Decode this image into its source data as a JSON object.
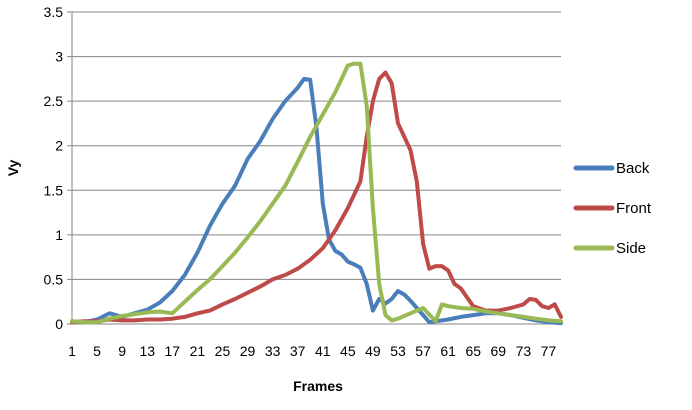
{
  "chart_data": {
    "type": "line",
    "title": "",
    "xlabel": "Frames",
    "ylabel": "Vy",
    "ylim": [
      0,
      3.5
    ],
    "yticks": [
      0,
      0.5,
      1,
      1.5,
      2,
      2.5,
      3,
      3.5
    ],
    "ytick_labels": [
      "0",
      "0.5",
      "1",
      "1.5",
      "2",
      "2.5",
      "3",
      "3.5"
    ],
    "xticks": [
      1,
      5,
      9,
      13,
      17,
      21,
      25,
      29,
      33,
      37,
      41,
      45,
      49,
      53,
      57,
      61,
      65,
      69,
      73,
      77
    ],
    "xtick_labels": [
      "1",
      "5",
      "9",
      "13",
      "17",
      "21",
      "25",
      "29",
      "33",
      "37",
      "41",
      "45",
      "49",
      "53",
      "57",
      "61",
      "65",
      "69",
      "73",
      "77"
    ],
    "xlim": [
      1,
      79
    ],
    "grid": "horizontal",
    "legend_position": "right",
    "series": [
      {
        "name": "Back",
        "color": "#4a7ebb",
        "points": [
          [
            1,
            0.03
          ],
          [
            3,
            0.02
          ],
          [
            5,
            0.05
          ],
          [
            7,
            0.12
          ],
          [
            9,
            0.08
          ],
          [
            11,
            0.12
          ],
          [
            13,
            0.16
          ],
          [
            15,
            0.24
          ],
          [
            17,
            0.37
          ],
          [
            19,
            0.55
          ],
          [
            21,
            0.8
          ],
          [
            23,
            1.1
          ],
          [
            25,
            1.35
          ],
          [
            27,
            1.55
          ],
          [
            29,
            1.85
          ],
          [
            31,
            2.05
          ],
          [
            33,
            2.3
          ],
          [
            35,
            2.5
          ],
          [
            37,
            2.65
          ],
          [
            38,
            2.75
          ],
          [
            39,
            2.74
          ],
          [
            40,
            2.2
          ],
          [
            41,
            1.35
          ],
          [
            42,
            0.95
          ],
          [
            43,
            0.82
          ],
          [
            44,
            0.78
          ],
          [
            45,
            0.7
          ],
          [
            46,
            0.67
          ],
          [
            47,
            0.63
          ],
          [
            48,
            0.45
          ],
          [
            49,
            0.15
          ],
          [
            50,
            0.28
          ],
          [
            51,
            0.23
          ],
          [
            52,
            0.28
          ],
          [
            53,
            0.37
          ],
          [
            54,
            0.33
          ],
          [
            55,
            0.26
          ],
          [
            56,
            0.18
          ],
          [
            57,
            0.1
          ],
          [
            58,
            0.02
          ],
          [
            59,
            0.03
          ],
          [
            61,
            0.05
          ],
          [
            63,
            0.08
          ],
          [
            65,
            0.1
          ],
          [
            67,
            0.12
          ],
          [
            69,
            0.12
          ],
          [
            71,
            0.1
          ],
          [
            73,
            0.07
          ],
          [
            75,
            0.04
          ],
          [
            77,
            0.02
          ],
          [
            79,
            0.01
          ]
        ]
      },
      {
        "name": "Front",
        "color": "#be4b48",
        "points": [
          [
            1,
            0.02
          ],
          [
            3,
            0.03
          ],
          [
            5,
            0.03
          ],
          [
            7,
            0.05
          ],
          [
            9,
            0.04
          ],
          [
            11,
            0.04
          ],
          [
            13,
            0.05
          ],
          [
            15,
            0.05
          ],
          [
            17,
            0.06
          ],
          [
            19,
            0.08
          ],
          [
            21,
            0.12
          ],
          [
            23,
            0.15
          ],
          [
            25,
            0.22
          ],
          [
            27,
            0.28
          ],
          [
            29,
            0.35
          ],
          [
            31,
            0.42
          ],
          [
            33,
            0.5
          ],
          [
            35,
            0.55
          ],
          [
            37,
            0.62
          ],
          [
            39,
            0.72
          ],
          [
            41,
            0.85
          ],
          [
            43,
            1.05
          ],
          [
            45,
            1.3
          ],
          [
            47,
            1.6
          ],
          [
            48,
            2.1
          ],
          [
            49,
            2.5
          ],
          [
            50,
            2.75
          ],
          [
            51,
            2.82
          ],
          [
            52,
            2.7
          ],
          [
            53,
            2.25
          ],
          [
            54,
            2.1
          ],
          [
            55,
            1.95
          ],
          [
            56,
            1.6
          ],
          [
            57,
            0.9
          ],
          [
            58,
            0.62
          ],
          [
            59,
            0.65
          ],
          [
            60,
            0.65
          ],
          [
            61,
            0.6
          ],
          [
            62,
            0.45
          ],
          [
            63,
            0.4
          ],
          [
            64,
            0.3
          ],
          [
            65,
            0.2
          ],
          [
            67,
            0.15
          ],
          [
            69,
            0.15
          ],
          [
            71,
            0.18
          ],
          [
            73,
            0.22
          ],
          [
            74,
            0.28
          ],
          [
            75,
            0.27
          ],
          [
            76,
            0.2
          ],
          [
            77,
            0.18
          ],
          [
            78,
            0.22
          ],
          [
            79,
            0.08
          ]
        ]
      },
      {
        "name": "Side",
        "color": "#98b954",
        "points": [
          [
            1,
            0.03
          ],
          [
            3,
            0.02
          ],
          [
            5,
            0.02
          ],
          [
            7,
            0.06
          ],
          [
            9,
            0.09
          ],
          [
            11,
            0.11
          ],
          [
            13,
            0.13
          ],
          [
            15,
            0.14
          ],
          [
            17,
            0.12
          ],
          [
            19,
            0.25
          ],
          [
            21,
            0.38
          ],
          [
            23,
            0.5
          ],
          [
            25,
            0.65
          ],
          [
            27,
            0.8
          ],
          [
            29,
            0.97
          ],
          [
            31,
            1.15
          ],
          [
            33,
            1.35
          ],
          [
            35,
            1.55
          ],
          [
            37,
            1.82
          ],
          [
            39,
            2.1
          ],
          [
            41,
            2.35
          ],
          [
            43,
            2.6
          ],
          [
            44,
            2.75
          ],
          [
            45,
            2.9
          ],
          [
            46,
            2.92
          ],
          [
            47,
            2.92
          ],
          [
            48,
            2.45
          ],
          [
            49,
            1.3
          ],
          [
            50,
            0.45
          ],
          [
            51,
            0.1
          ],
          [
            52,
            0.04
          ],
          [
            53,
            0.06
          ],
          [
            55,
            0.12
          ],
          [
            57,
            0.18
          ],
          [
            59,
            0.03
          ],
          [
            60,
            0.22
          ],
          [
            61,
            0.2
          ],
          [
            63,
            0.18
          ],
          [
            65,
            0.17
          ],
          [
            67,
            0.14
          ],
          [
            69,
            0.12
          ],
          [
            71,
            0.1
          ],
          [
            73,
            0.08
          ],
          [
            75,
            0.06
          ],
          [
            77,
            0.04
          ],
          [
            79,
            0.03
          ]
        ]
      }
    ]
  }
}
